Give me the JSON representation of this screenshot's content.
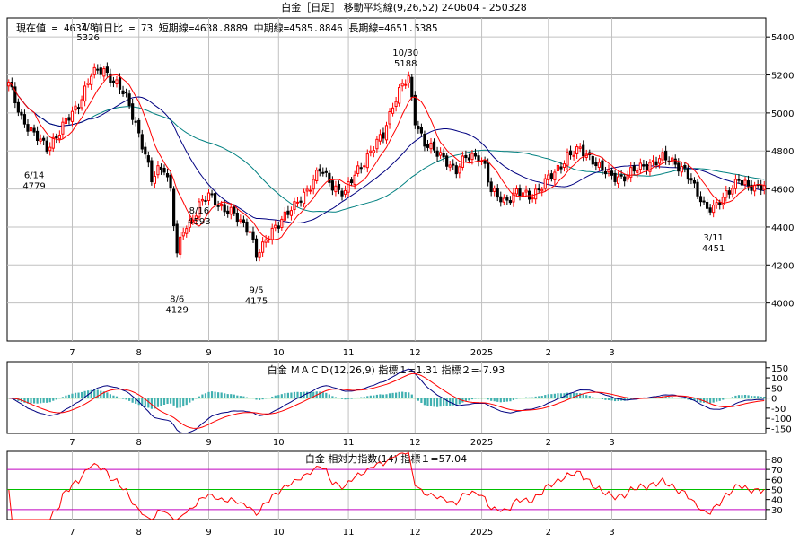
{
  "header": {
    "title": "白金［日足］ 移動平均線(9,26,52)  240604 - 250328",
    "info": "現在値 = 4634  前日比 = 73  短期線=4638.8889  中期線=4585.8846  長期線=4651.5385"
  },
  "macd_header": "白金   ＭＡＣＤ(12,26,9) 指標１=1.31  指標２=-7.93",
  "rsi_header": "白金   相対力指数(14) 指標１=57.04",
  "colors": {
    "up": "#ff0000",
    "down": "#000000",
    "short_ma": "#ff0000",
    "mid_ma": "#000080",
    "long_ma": "#008080",
    "macd_line": "#000080",
    "signal_line": "#ff0000",
    "histogram": "#40b0b0",
    "zero_line": "#00c000",
    "rsi_line": "#ff0000",
    "rsi_mid": "#00c000",
    "rsi_bands": "#c000c0",
    "grid": "#c0c0c0"
  },
  "chart_data": [
    {
      "type": "candlestick",
      "title": "白金［日足］ 移動平均線(9,26,52)  240604 - 250328",
      "x_tick_labels": [
        "7",
        "8",
        "9",
        "10",
        "11",
        "12",
        "2025",
        "2",
        "3"
      ],
      "y_ticks": [
        4000,
        4200,
        4400,
        4600,
        4800,
        5000,
        5200,
        5400
      ],
      "ylim": [
        3800,
        5500
      ],
      "grid": true,
      "annotations": [
        {
          "date": "6/14",
          "value": 4779
        },
        {
          "date": "7/8",
          "value": 5326
        },
        {
          "date": "8/6",
          "value": 4129
        },
        {
          "date": "8/16",
          "value": 4593
        },
        {
          "date": "9/5",
          "value": 4175
        },
        {
          "date": "10/30",
          "value": 5188
        },
        {
          "date": "3/11",
          "value": 4451
        }
      ],
      "close_anchors": [
        [
          0,
          5150
        ],
        [
          4,
          4980
        ],
        [
          8,
          4880
        ],
        [
          12,
          4820
        ],
        [
          16,
          4900
        ],
        [
          22,
          5050
        ],
        [
          26,
          5200
        ],
        [
          30,
          5230
        ],
        [
          34,
          5150
        ],
        [
          37,
          5080
        ],
        [
          40,
          4950
        ],
        [
          43,
          4780
        ],
        [
          45,
          4640
        ],
        [
          47,
          4700
        ],
        [
          49,
          4720
        ],
        [
          51,
          4600
        ],
        [
          53,
          4250
        ],
        [
          55,
          4380
        ],
        [
          57,
          4420
        ],
        [
          60,
          4520
        ],
        [
          63,
          4560
        ],
        [
          66,
          4520
        ],
        [
          70,
          4480
        ],
        [
          73,
          4420
        ],
        [
          76,
          4390
        ],
        [
          78,
          4260
        ],
        [
          80,
          4290
        ],
        [
          83,
          4380
        ],
        [
          86,
          4450
        ],
        [
          90,
          4500
        ],
        [
          94,
          4600
        ],
        [
          98,
          4700
        ],
        [
          102,
          4620
        ],
        [
          106,
          4580
        ],
        [
          110,
          4700
        ],
        [
          114,
          4800
        ],
        [
          118,
          4880
        ],
        [
          121,
          5050
        ],
        [
          124,
          5150
        ],
        [
          126,
          5170
        ],
        [
          128,
          4960
        ],
        [
          131,
          4850
        ],
        [
          135,
          4780
        ],
        [
          138,
          4750
        ],
        [
          141,
          4700
        ],
        [
          144,
          4760
        ],
        [
          148,
          4780
        ],
        [
          150,
          4720
        ],
        [
          152,
          4580
        ],
        [
          156,
          4540
        ],
        [
          160,
          4580
        ],
        [
          164,
          4560
        ],
        [
          168,
          4620
        ],
        [
          172,
          4680
        ],
        [
          176,
          4780
        ],
        [
          180,
          4800
        ],
        [
          184,
          4760
        ],
        [
          187,
          4700
        ],
        [
          190,
          4660
        ],
        [
          194,
          4670
        ],
        [
          198,
          4700
        ],
        [
          202,
          4740
        ],
        [
          206,
          4760
        ],
        [
          210,
          4740
        ],
        [
          213,
          4700
        ],
        [
          216,
          4600
        ],
        [
          219,
          4520
        ],
        [
          222,
          4500
        ],
        [
          225,
          4540
        ],
        [
          228,
          4620
        ],
        [
          230,
          4660
        ],
        [
          233,
          4600
        ],
        [
          236,
          4610
        ],
        [
          238,
          4634
        ]
      ],
      "series": [
        {
          "name": "短期線",
          "last": 4638.8889
        },
        {
          "name": "中期線",
          "last": 4585.8846
        },
        {
          "name": "長期線",
          "last": 4651.5385
        }
      ]
    },
    {
      "type": "line",
      "title": "ＭＡＣＤ(12,26,9)",
      "y_ticks": [
        150,
        100,
        50,
        0,
        -50,
        -100,
        -150
      ],
      "ylim": [
        -175,
        180
      ],
      "series": [
        {
          "name": "指標１",
          "last": 1.31
        },
        {
          "name": "指標２",
          "last": -7.93
        }
      ],
      "zero_line": true
    },
    {
      "type": "line",
      "title": "相対力指数(14)",
      "y_ticks": [
        80,
        70,
        60,
        50,
        40,
        30
      ],
      "ylim": [
        20,
        88
      ],
      "bands": [
        70,
        50,
        30
      ],
      "series": [
        {
          "name": "指標１",
          "last": 57.04
        }
      ]
    }
  ]
}
